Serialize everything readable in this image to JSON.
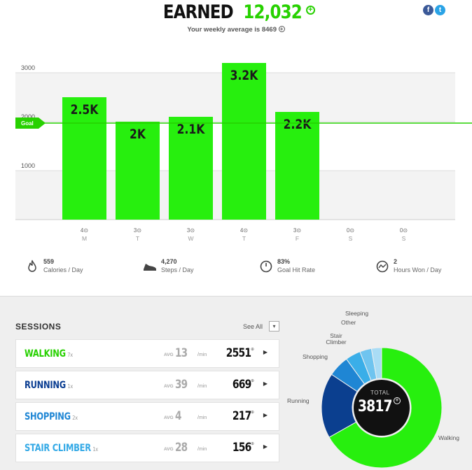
{
  "header": {
    "earned_label": "EARNED",
    "earned_value": "12,032",
    "weekly_text": "Your weekly average is 8469",
    "accent": "#27d100",
    "social": {
      "facebook": "f",
      "twitter": "t"
    }
  },
  "chart_data": {
    "type": "bar",
    "categories": [
      "M",
      "T",
      "W",
      "T",
      "F",
      "S",
      "S"
    ],
    "values": [
      2500,
      2000,
      2100,
      3200,
      2200,
      0,
      0
    ],
    "value_labels": [
      "2.5K",
      "2K",
      "2.1K",
      "3.2K",
      "2.2K",
      "",
      ""
    ],
    "hours_won": [
      "4",
      "3",
      "3",
      "4",
      "3",
      "0",
      "0"
    ],
    "y_ticks": [
      "1000",
      "2000",
      "3000"
    ],
    "ylim": [
      0,
      3200
    ],
    "goal": 2000,
    "goal_label": "Goal",
    "bar_color": "#27ef0e",
    "grid": true
  },
  "stats": [
    {
      "value": "559",
      "label": "Calories / Day",
      "icon": "flame-icon"
    },
    {
      "value": "4,270",
      "label": "Steps / Day",
      "icon": "shoe-icon"
    },
    {
      "value": "83%",
      "label": "Goal Hit Rate",
      "icon": "clock-icon"
    },
    {
      "value": "2",
      "label": "Hours Won / Day",
      "icon": "hours-graph-icon"
    }
  ],
  "sessions": {
    "title": "SESSIONS",
    "see_all": "See All",
    "avg_label": "AVG",
    "per_min": "/min",
    "items": [
      {
        "name": "WALKING",
        "count": "7x",
        "avg": "13",
        "total": "2551",
        "color": "#27d100"
      },
      {
        "name": "RUNNING",
        "count": "1x",
        "avg": "39",
        "total": "669",
        "color": "#0a3d91"
      },
      {
        "name": "SHOPPING",
        "count": "2x",
        "avg": "4",
        "total": "217",
        "color": "#1f86d4"
      },
      {
        "name": "STAIR CLIMBER",
        "count": "1x",
        "avg": "28",
        "total": "156",
        "color": "#33a9e6"
      }
    ]
  },
  "donut": {
    "total_label": "TOTAL",
    "total_value": "3817",
    "segments": [
      {
        "name": "Walking",
        "value": 2551,
        "color": "#27ef0e"
      },
      {
        "name": "Running",
        "value": 669,
        "color": "#0b3f8f"
      },
      {
        "name": "Shopping",
        "value": 217,
        "color": "#1f86d4"
      },
      {
        "name": "Stair Climber",
        "value": 156,
        "color": "#3aaee8"
      },
      {
        "name": "Other",
        "value": 120,
        "color": "#6fc4ef"
      },
      {
        "name": "Sleeping",
        "value": 104,
        "color": "#a9dcf5"
      }
    ]
  }
}
